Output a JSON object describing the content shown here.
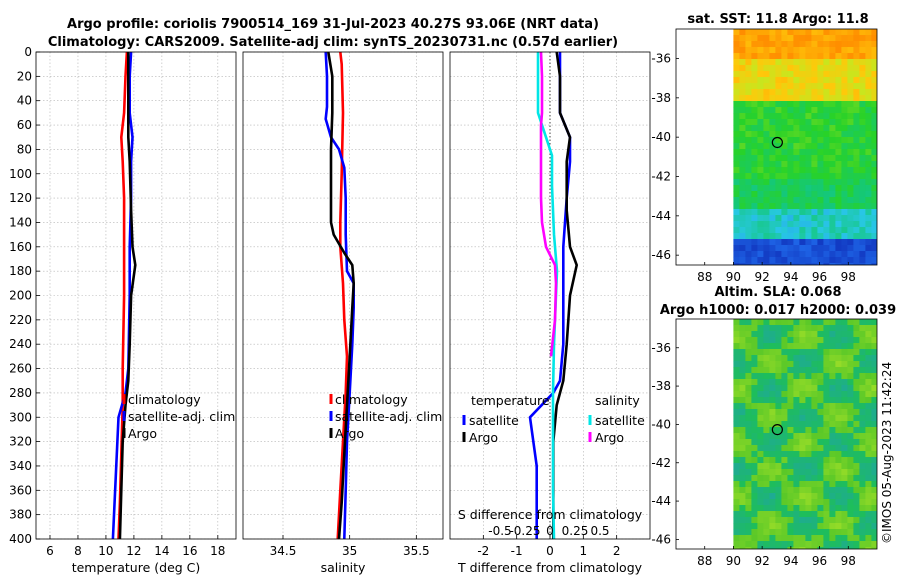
{
  "title": {
    "line1": "Argo profile: coriolis 7900514_169 31-Jul-2023 40.27S 93.06E (NRT data)",
    "line2": "Climatology: CARS2009. Satellite-adj clim: synTS_20230731.nc (0.57d earlier)"
  },
  "timestamp": "©IMOS 05-Aug-2023 11:42:24",
  "colors": {
    "red": "#ff0000",
    "blue": "#0000ff",
    "black": "#000000",
    "cyan": "#00e6e6",
    "magenta": "#ff00ff"
  },
  "chart_data": [
    {
      "id": "temperature",
      "type": "line",
      "xlabel": "temperature (deg C)",
      "ylabel": "",
      "xlim": [
        5,
        19.3
      ],
      "ylim": [
        400,
        0
      ],
      "xticks": [
        6,
        8,
        10,
        12,
        14,
        16,
        18
      ],
      "yticks": [
        0,
        20,
        40,
        60,
        80,
        100,
        120,
        140,
        160,
        180,
        200,
        220,
        240,
        260,
        280,
        300,
        320,
        340,
        360,
        380,
        400
      ],
      "legend": [
        "climatology",
        "satellite-adj. clim",
        "Argo"
      ],
      "series": [
        {
          "name": "climatology",
          "color": "red",
          "points": [
            [
              11.5,
              0
            ],
            [
              11.4,
              20
            ],
            [
              11.3,
              50
            ],
            [
              11.1,
              70
            ],
            [
              11.2,
              90
            ],
            [
              11.3,
              120
            ],
            [
              11.3,
              160
            ],
            [
              11.3,
              200
            ],
            [
              11.2,
              260
            ],
            [
              11.2,
              290
            ],
            [
              11.1,
              330
            ],
            [
              11.0,
              370
            ],
            [
              10.9,
              400
            ]
          ]
        },
        {
          "name": "satellite-adj. clim",
          "color": "blue",
          "points": [
            [
              11.8,
              0
            ],
            [
              11.7,
              20
            ],
            [
              11.7,
              50
            ],
            [
              11.9,
              70
            ],
            [
              11.8,
              90
            ],
            [
              11.8,
              120
            ],
            [
              11.7,
              160
            ],
            [
              11.7,
              200
            ],
            [
              11.6,
              260
            ],
            [
              11.4,
              280
            ],
            [
              10.9,
              300
            ],
            [
              10.7,
              350
            ],
            [
              10.5,
              400
            ]
          ]
        },
        {
          "name": "Argo",
          "color": "black",
          "points": [
            [
              11.6,
              0
            ],
            [
              11.6,
              20
            ],
            [
              11.6,
              50
            ],
            [
              11.6,
              70
            ],
            [
              11.7,
              90
            ],
            [
              11.8,
              130
            ],
            [
              11.9,
              160
            ],
            [
              12.1,
              175
            ],
            [
              11.8,
              200
            ],
            [
              11.7,
              240
            ],
            [
              11.6,
              270
            ],
            [
              11.4,
              290
            ],
            [
              11.2,
              320
            ],
            [
              11.1,
              360
            ],
            [
              11.0,
              400
            ]
          ]
        }
      ]
    },
    {
      "id": "salinity",
      "type": "line",
      "xlabel": "salinity",
      "ylabel": "",
      "xlim": [
        34.2,
        35.7
      ],
      "ylim": [
        400,
        0
      ],
      "xticks": [
        34.5,
        35,
        35.5
      ],
      "yticks": [
        0,
        20,
        40,
        60,
        80,
        100,
        120,
        140,
        160,
        180,
        200,
        220,
        240,
        260,
        280,
        300,
        320,
        340,
        360,
        380,
        400
      ],
      "legend": [
        "climatology",
        "satellite-adj. clim",
        "Argo"
      ],
      "series": [
        {
          "name": "climatology",
          "color": "red",
          "points": [
            [
              34.93,
              0
            ],
            [
              34.94,
              10
            ],
            [
              34.95,
              50
            ],
            [
              34.94,
              100
            ],
            [
              34.93,
              140
            ],
            [
              34.93,
              160
            ],
            [
              34.95,
              190
            ],
            [
              34.96,
              220
            ],
            [
              34.98,
              250
            ],
            [
              34.97,
              280
            ],
            [
              34.95,
              320
            ],
            [
              34.93,
              360
            ],
            [
              34.91,
              400
            ]
          ]
        },
        {
          "name": "satellite-adj. clim",
          "color": "blue",
          "points": [
            [
              34.82,
              0
            ],
            [
              34.83,
              20
            ],
            [
              34.83,
              45
            ],
            [
              34.82,
              55
            ],
            [
              34.86,
              70
            ],
            [
              34.92,
              80
            ],
            [
              34.96,
              95
            ],
            [
              34.97,
              120
            ],
            [
              34.97,
              150
            ],
            [
              34.98,
              180
            ],
            [
              35.03,
              190
            ],
            [
              35.03,
              210
            ],
            [
              35.02,
              240
            ],
            [
              35.0,
              280
            ],
            [
              34.98,
              320
            ],
            [
              34.97,
              360
            ],
            [
              34.96,
              400
            ]
          ]
        },
        {
          "name": "Argo",
          "color": "black",
          "points": [
            [
              34.84,
              0
            ],
            [
              34.87,
              20
            ],
            [
              34.87,
              50
            ],
            [
              34.86,
              80
            ],
            [
              34.86,
              110
            ],
            [
              34.86,
              140
            ],
            [
              34.88,
              150
            ],
            [
              34.96,
              165
            ],
            [
              35.02,
              175
            ],
            [
              35.03,
              190
            ],
            [
              35.02,
              210
            ],
            [
              35.0,
              250
            ],
            [
              34.98,
              290
            ],
            [
              34.96,
              330
            ],
            [
              34.94,
              370
            ],
            [
              34.92,
              400
            ]
          ]
        }
      ]
    },
    {
      "id": "difference",
      "type": "line",
      "xlabel": "T difference from climatology",
      "xlabel_top": "S difference from climatology",
      "ylabel": "",
      "xlim": [
        -3,
        3
      ],
      "ylim": [
        400,
        0
      ],
      "xticks": [
        -2,
        -1,
        0,
        1,
        2
      ],
      "xticklabels": [
        "-2",
        "-1",
        "0",
        "1",
        "2"
      ],
      "sticks": [
        -0.5,
        -0.25,
        0,
        0.25,
        0.5
      ],
      "sticklabels": [
        "-0.5",
        "-0.25",
        "0",
        "0.25",
        "0.5"
      ],
      "yticks": [
        0,
        20,
        40,
        60,
        80,
        100,
        120,
        140,
        160,
        180,
        200,
        220,
        240,
        260,
        280,
        300,
        320,
        340,
        360,
        380,
        400
      ],
      "legend_temperature_title": "temperature",
      "legend_salinity_title": "salinity",
      "legend_temperature": [
        "satellite",
        "Argo"
      ],
      "legend_salinity": [
        "satellite",
        "Argo"
      ],
      "series": [
        {
          "name": "satellite (T)",
          "color": "blue",
          "points": [
            [
              0.3,
              0
            ],
            [
              0.3,
              20
            ],
            [
              0.3,
              50
            ],
            [
              0.6,
              70
            ],
            [
              0.6,
              90
            ],
            [
              0.5,
              120
            ],
            [
              0.4,
              160
            ],
            [
              0.4,
              200
            ],
            [
              0.4,
              240
            ],
            [
              0.3,
              270
            ],
            [
              0.1,
              280
            ],
            [
              -0.6,
              300
            ],
            [
              -0.4,
              340
            ],
            [
              -0.4,
              400
            ]
          ]
        },
        {
          "name": "Argo (T)",
          "color": "black",
          "points": [
            [
              0.2,
              0
            ],
            [
              0.3,
              20
            ],
            [
              0.3,
              50
            ],
            [
              0.6,
              70
            ],
            [
              0.5,
              90
            ],
            [
              0.5,
              130
            ],
            [
              0.6,
              160
            ],
            [
              0.8,
              175
            ],
            [
              0.6,
              200
            ],
            [
              0.5,
              240
            ],
            [
              0.4,
              270
            ],
            [
              0.2,
              290
            ],
            [
              0.1,
              320
            ],
            [
              0.1,
              360
            ],
            [
              0.1,
              400
            ]
          ]
        },
        {
          "name": "satellite (S)",
          "color": "cyan",
          "points": [
            [
              -0.12,
              0
            ],
            [
              -0.12,
              20
            ],
            [
              -0.12,
              50
            ],
            [
              -0.04,
              70
            ],
            [
              0.02,
              85
            ],
            [
              0.02,
              110
            ],
            [
              0.04,
              150
            ],
            [
              0.07,
              180
            ],
            [
              0.06,
              200
            ],
            [
              0.04,
              240
            ],
            [
              0.03,
              280
            ],
            [
              0.03,
              320
            ],
            [
              0.03,
              360
            ],
            [
              0.04,
              400
            ]
          ]
        },
        {
          "name": "Argo (S)",
          "color": "magenta",
          "points": [
            [
              -0.09,
              0
            ],
            [
              -0.08,
              20
            ],
            [
              -0.08,
              50
            ],
            [
              -0.09,
              60
            ],
            [
              -0.09,
              90
            ],
            [
              -0.09,
              120
            ],
            [
              -0.08,
              140
            ],
            [
              -0.04,
              160
            ],
            [
              0.05,
              175
            ],
            [
              0.06,
              190
            ],
            [
              0.05,
              220
            ],
            [
              0.01,
              250
            ]
          ]
        }
      ]
    },
    {
      "id": "sst-map",
      "type": "heatmap",
      "title": "sat. SST: 11.8 Argo: 11.8",
      "xlim": [
        86,
        100
      ],
      "ylim": [
        -46.5,
        -34.5
      ],
      "xticks": [
        88,
        90,
        92,
        94,
        96,
        98
      ],
      "yticks": [
        -36,
        -38,
        -40,
        -42,
        -44,
        -46
      ],
      "data_xlim": [
        90,
        100
      ],
      "marker": [
        93.06,
        -40.27
      ]
    },
    {
      "id": "sla-map",
      "type": "heatmap",
      "title": "Altim. SLA: 0.068",
      "subtitle": "Argo h1000: 0.017 h2000: 0.039",
      "xlim": [
        86,
        100
      ],
      "ylim": [
        -46.5,
        -34.5
      ],
      "xticks": [
        88,
        90,
        92,
        94,
        96,
        98
      ],
      "yticks": [
        -36,
        -38,
        -40,
        -42,
        -44,
        -46
      ],
      "data_xlim": [
        90,
        100
      ],
      "marker": [
        93.06,
        -40.27
      ]
    }
  ]
}
